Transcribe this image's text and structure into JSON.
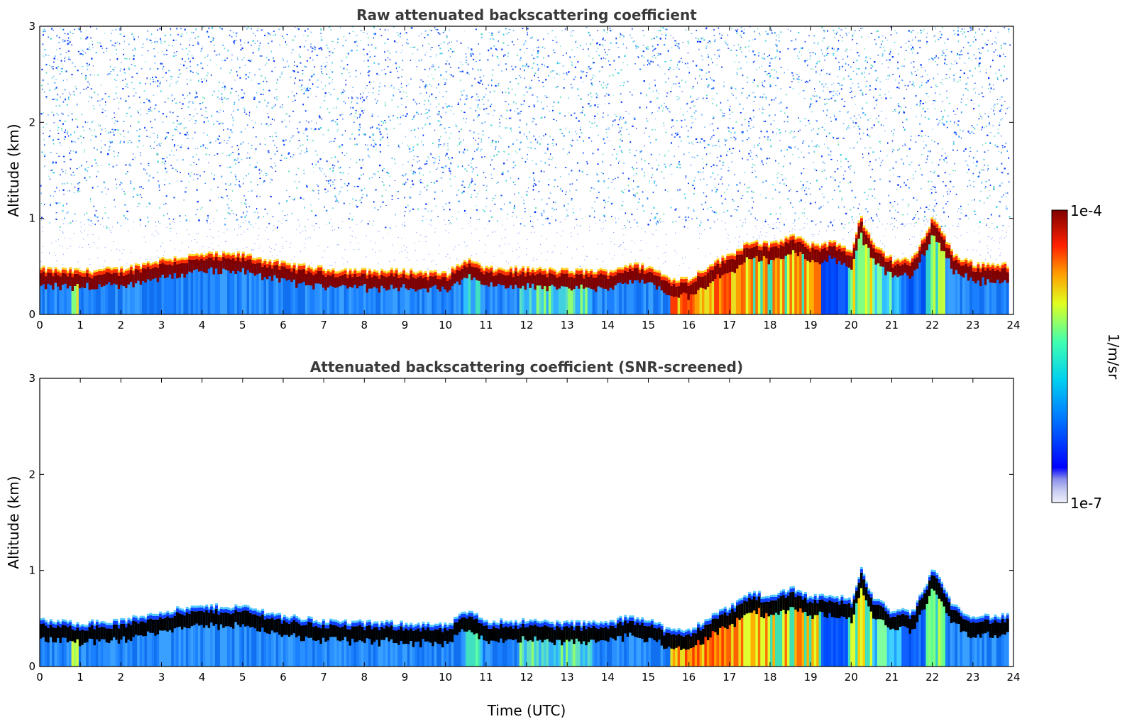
{
  "chart_data": [
    {
      "type": "heatmap",
      "title": "Raw attenuated backscattering coefficient",
      "xlabel": "",
      "ylabel": "Altitude (km)",
      "xlim": [
        0,
        24
      ],
      "ylim": [
        0,
        3
      ],
      "xticks": [
        "0",
        "1",
        "2",
        "3",
        "4",
        "5",
        "6",
        "7",
        "8",
        "9",
        "10",
        "11",
        "12",
        "13",
        "14",
        "15",
        "16",
        "17",
        "18",
        "19",
        "20",
        "21",
        "22",
        "23",
        "24"
      ],
      "yticks": [
        "0",
        "1",
        "2",
        "3"
      ],
      "layer_top_km": {
        "x": [
          0,
          1,
          2,
          3,
          4,
          5,
          6,
          7,
          8,
          9,
          10,
          10.5,
          11,
          12,
          13,
          14,
          14.5,
          15,
          15.5,
          16,
          16.5,
          17,
          17.5,
          18,
          18.5,
          19,
          19.5,
          20,
          20.2,
          20.5,
          21,
          21.5,
          22,
          22.5,
          23,
          23.8
        ],
        "y": [
          0.4,
          0.38,
          0.4,
          0.5,
          0.55,
          0.55,
          0.45,
          0.4,
          0.38,
          0.38,
          0.35,
          0.5,
          0.4,
          0.4,
          0.38,
          0.38,
          0.45,
          0.42,
          0.3,
          0.3,
          0.45,
          0.55,
          0.7,
          0.65,
          0.75,
          0.65,
          0.68,
          0.6,
          0.95,
          0.65,
          0.5,
          0.5,
          0.95,
          0.55,
          0.45,
          0.45
        ]
      },
      "noise_above_km": 0.9
    },
    {
      "type": "heatmap",
      "title": "Attenuated backscattering coefficient (SNR-screened)",
      "xlabel": "Time (UTC)",
      "ylabel": "Altitude (km)",
      "xlim": [
        0,
        24
      ],
      "ylim": [
        0,
        3
      ],
      "xticks": [
        "0",
        "1",
        "2",
        "3",
        "4",
        "5",
        "6",
        "7",
        "8",
        "9",
        "10",
        "11",
        "12",
        "13",
        "14",
        "15",
        "16",
        "17",
        "18",
        "19",
        "20",
        "21",
        "22",
        "23",
        "24"
      ],
      "yticks": [
        "0",
        "1",
        "2",
        "3"
      ]
    }
  ],
  "colorbar": {
    "max_label": "1e-4",
    "min_label": "1e-7",
    "unit_label": "1/m/sr",
    "scale": "log",
    "range": [
      1e-07,
      0.0001
    ]
  }
}
